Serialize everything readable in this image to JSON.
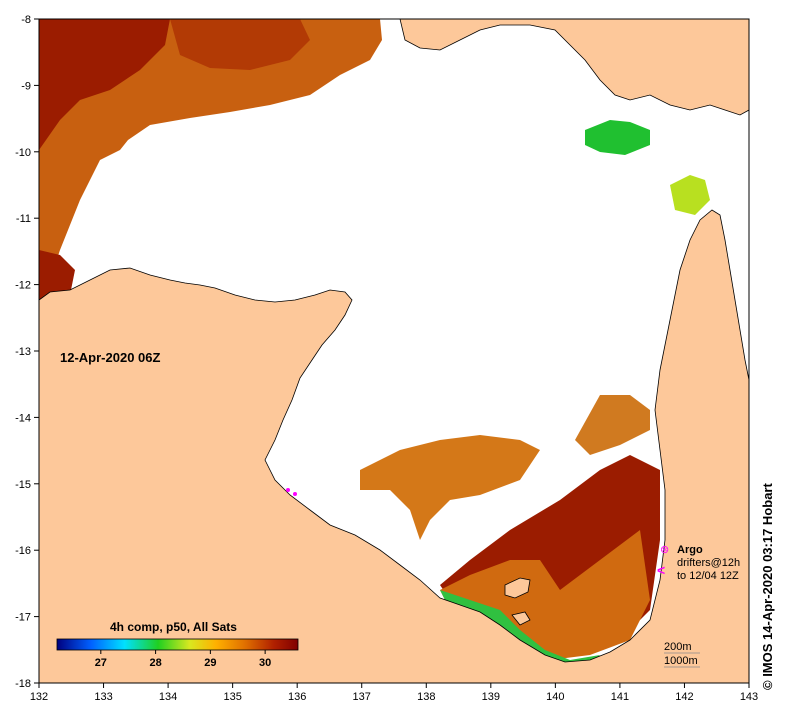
{
  "map": {
    "lon_ticks": [
      "132",
      "133",
      "134",
      "135",
      "136",
      "137",
      "138",
      "139",
      "140",
      "141",
      "142",
      "143"
    ],
    "lat_ticks": [
      "-8",
      "-9",
      "-10",
      "-11",
      "-12",
      "-13",
      "-14",
      "-15",
      "-16",
      "-17",
      "-18"
    ],
    "date_label": "12-Apr-2020 06Z",
    "colorbar": {
      "title": "4h comp, p50, All Sats",
      "ticks": [
        "27",
        "28",
        "29",
        "30"
      ],
      "range": [
        26.2,
        30.6
      ],
      "colors": [
        "#00007f",
        "#0060ff",
        "#00e0ff",
        "#20d020",
        "#d8e820",
        "#ffb000",
        "#e07000",
        "#b02000",
        "#800000"
      ]
    },
    "legend": {
      "argo_label": "Argo",
      "drifters_label": "drifters@12h",
      "to_label": "to 12/04 12Z",
      "argo_symbol": "⊛",
      "drifter_symbol": "<",
      "symbol_color": "#ff00ff"
    },
    "depth_labels": [
      "200m",
      "1000m"
    ],
    "credit": "© IMOS 14-Apr-2020 03:17 Hobart",
    "colors": {
      "land": "#fdc89a",
      "cloud": "#ffffff",
      "sst_hot": "#9b1c00",
      "sst_warm": "#d46a10",
      "sst_mid": "#e8a020"
    }
  }
}
